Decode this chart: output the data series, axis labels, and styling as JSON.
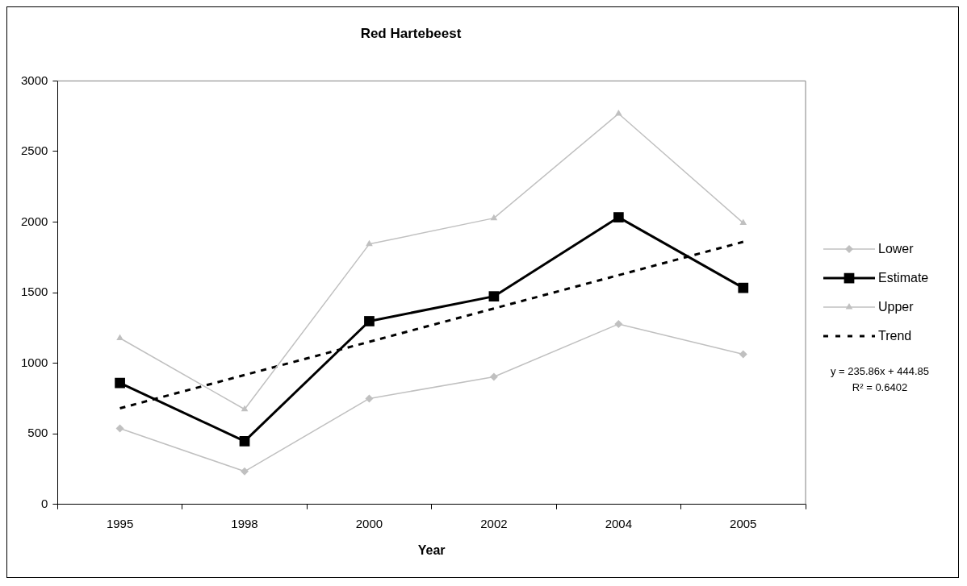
{
  "chart_data": {
    "type": "line",
    "title": "Red Hartebeest",
    "xlabel": "Year",
    "categories": [
      "1995",
      "1998",
      "2000",
      "2002",
      "2004",
      "2005"
    ],
    "series": [
      {
        "name": "Lower",
        "color": "#c0c0c0",
        "marker": "diamond",
        "values": [
          538,
          234,
          750,
          904,
          1278,
          1064
        ]
      },
      {
        "name": "Estimate",
        "color": "#000000",
        "marker": "square",
        "values": [
          860,
          448,
          1298,
          1474,
          2034,
          1534
        ]
      },
      {
        "name": "Upper",
        "color": "#c0c0c0",
        "marker": "triangle",
        "values": [
          1178,
          674,
          1844,
          2028,
          2768,
          1994
        ]
      },
      {
        "name": "Trend",
        "color": "#000000",
        "marker": "none",
        "line_style": "dashed",
        "values": [
          681,
          917,
          1152,
          1388,
          1624,
          1860
        ]
      }
    ],
    "ylim": [
      0,
      3000
    ],
    "yticks": [
      0,
      500,
      1000,
      1500,
      2000,
      2500,
      3000
    ],
    "grid": false,
    "legend": "right",
    "annotations": [
      "y = 235.86x + 444.85",
      "R² = 0.6402"
    ]
  }
}
